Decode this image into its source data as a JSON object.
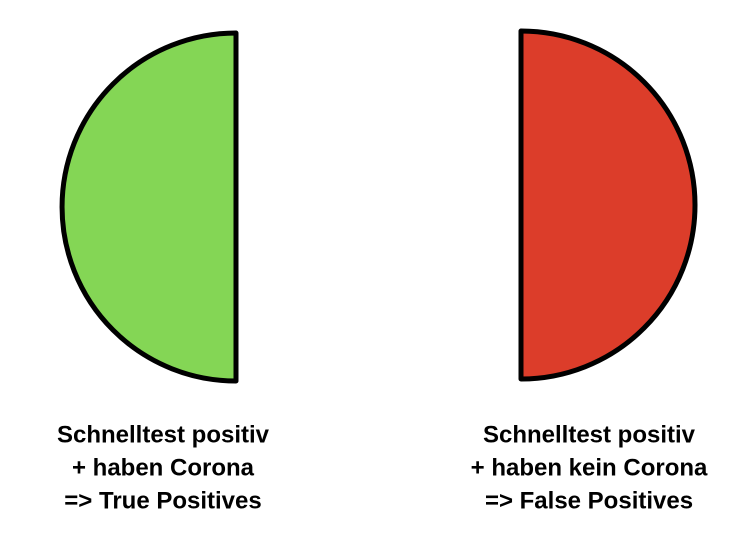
{
  "panels": [
    {
      "lines": [
        "Schnelltest positiv",
        "+ haben Corona",
        "=> True Positives"
      ]
    },
    {
      "lines": [
        "Schnelltest positiv",
        "+ haben kein Corona",
        "=> False Positives"
      ]
    }
  ]
}
